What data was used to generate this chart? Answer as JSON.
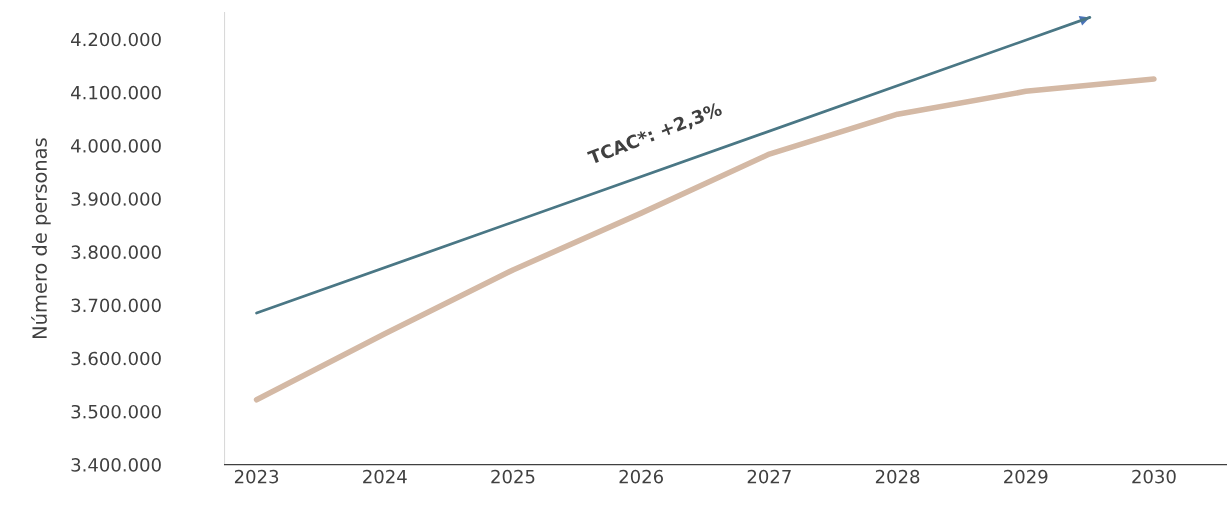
{
  "chart_data": {
    "type": "line",
    "ylabel": "Número de personas",
    "x": [
      2023,
      2024,
      2025,
      2026,
      2027,
      2028,
      2029,
      2030
    ],
    "series": [
      {
        "color": "#d4b9a5",
        "values": [
          3522000,
          3646000,
          3766000,
          3873000,
          3984000,
          4059000,
          4102000,
          4125000
        ]
      },
      {
        "color": "#4a7785",
        "x": [
          2023,
          2029.5
        ],
        "values": [
          3685000,
          4241000
        ]
      }
    ],
    "annotations": [
      "TCAC*: +2,3%"
    ],
    "xlim": [
      2022.75,
      2030.57
    ],
    "xticks": [
      2023,
      2024,
      2025,
      2026,
      2027,
      2028,
      2029,
      2030
    ],
    "ylim": [
      3400000,
      4250000
    ],
    "yticks": [
      {
        "value": 3400000,
        "label": "3.400.000"
      },
      {
        "value": 3500000,
        "label": "3.500.000"
      },
      {
        "value": 3600000,
        "label": "3.600.000"
      },
      {
        "value": 3700000,
        "label": "3.700.000"
      },
      {
        "value": 3800000,
        "label": "3.800.000"
      },
      {
        "value": 3900000,
        "label": "3.900.000"
      },
      {
        "value": 4000000,
        "label": "4.000.000"
      },
      {
        "value": 4100000,
        "label": "4.100.000"
      },
      {
        "value": 4200000,
        "label": "4.200.000"
      }
    ],
    "grid": false,
    "legend": false
  }
}
